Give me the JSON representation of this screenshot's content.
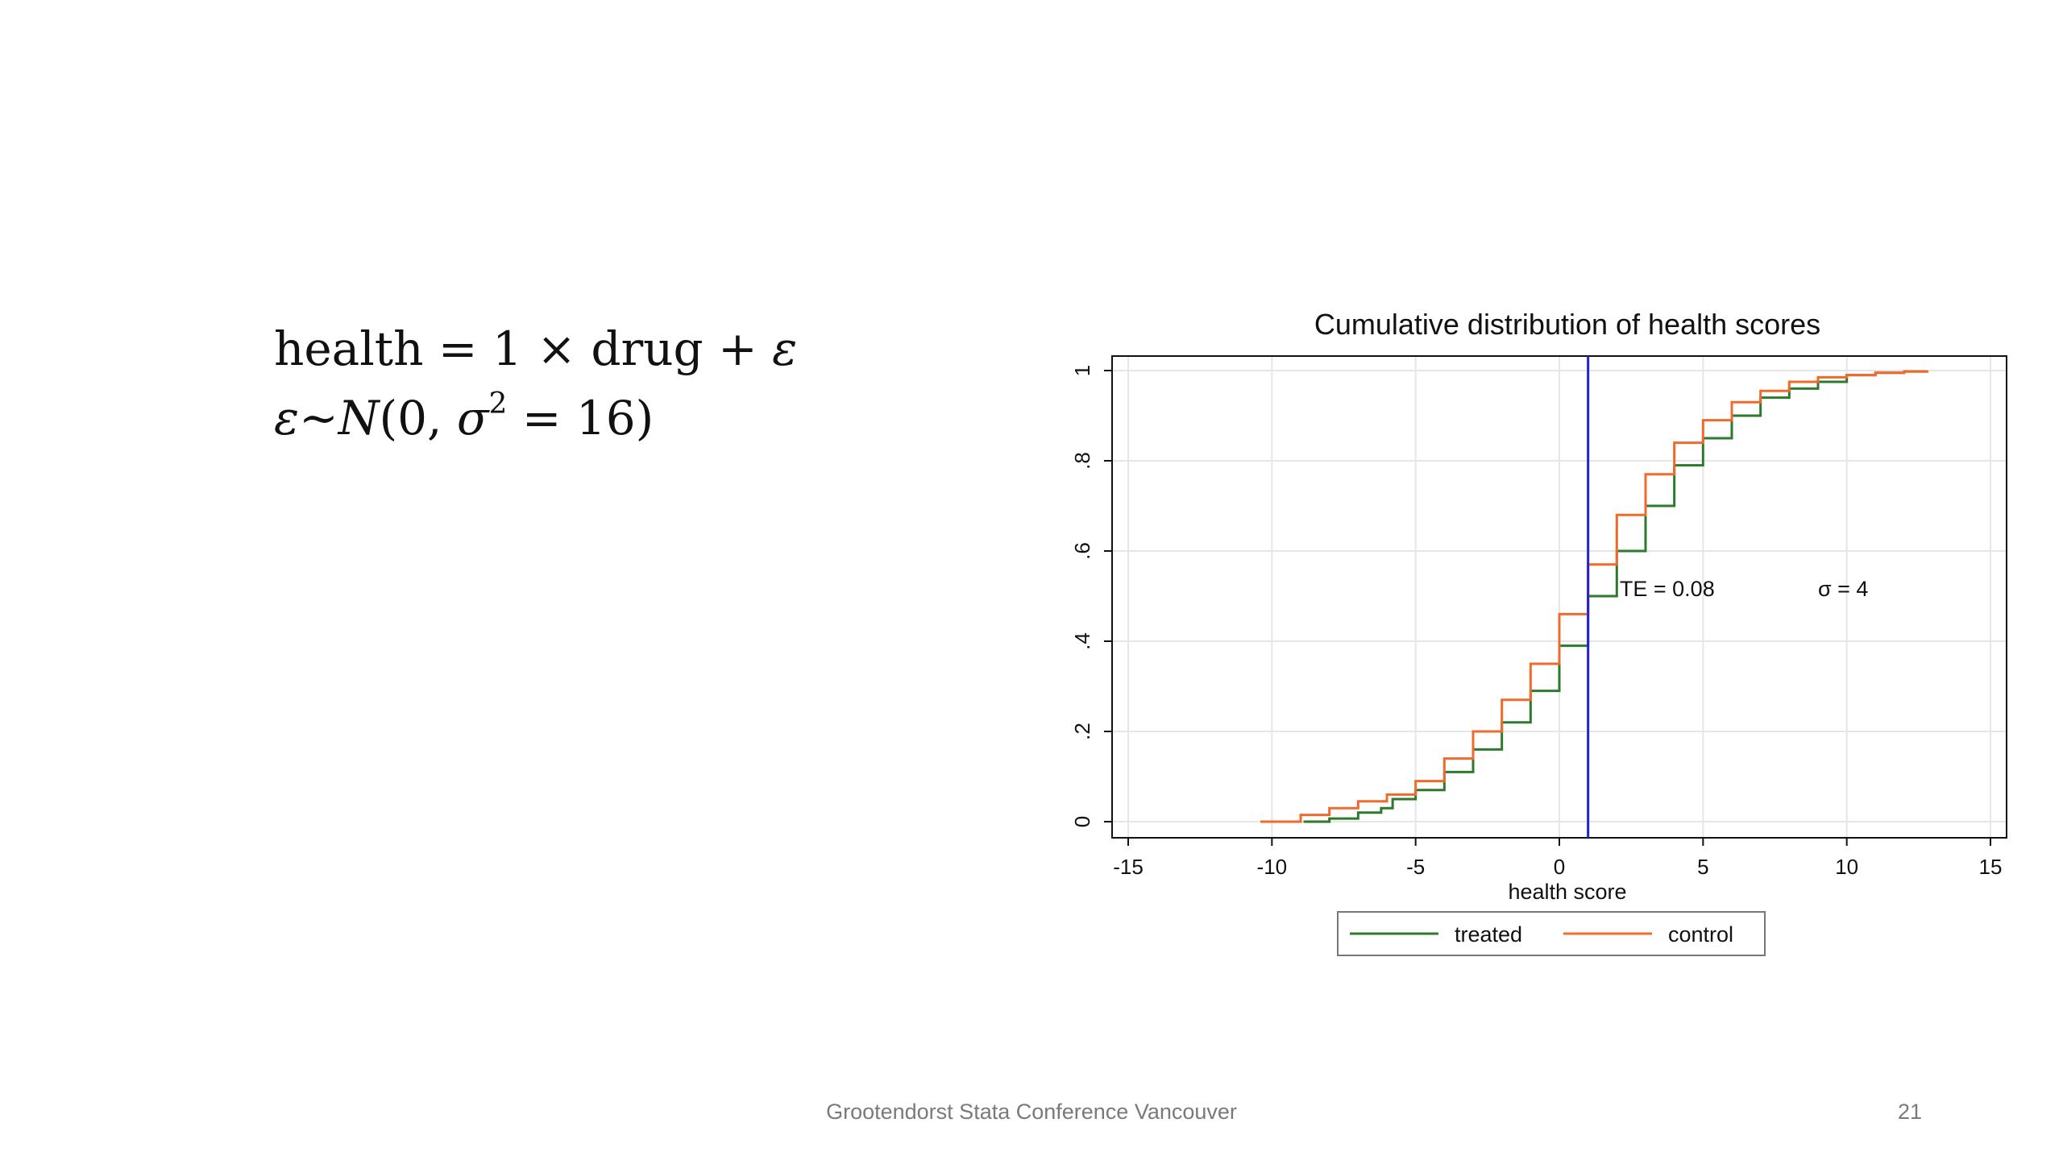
{
  "slide": {
    "equation_line1": {
      "lhs": "health",
      "op1": " = 1 × ",
      "term": "drug",
      "op2": " + ",
      "err": "ε"
    },
    "equation_line2": {
      "err": "ε",
      "tilde": "~",
      "dist": "N",
      "open": "(0, ",
      "sigma": "σ",
      "exp": "2",
      "close": " = 16)"
    },
    "footer": "Grootendorst Stata Conference Vancouver",
    "page_number": "21"
  },
  "chart_data": {
    "type": "line",
    "title": "Cumulative distribution of health scores",
    "xlabel": "health score",
    "ylabel": "",
    "xlim": [
      -15,
      15
    ],
    "ylim": [
      0,
      1
    ],
    "x_ticks": [
      -15,
      -10,
      -5,
      0,
      5,
      10,
      15
    ],
    "x_tick_labels": [
      "-15",
      "-10",
      "-5",
      "0",
      "5",
      "10",
      "15"
    ],
    "y_ticks": [
      0,
      0.2,
      0.4,
      0.6,
      0.8,
      1
    ],
    "y_tick_labels": [
      "0",
      ".2",
      ".4",
      ".6",
      ".8",
      "1"
    ],
    "grid": true,
    "legend_position": "bottom",
    "reference_line": {
      "x": 1,
      "color": "#2222cc"
    },
    "annotations": [
      {
        "text": "TE = 0.08",
        "x": 2.1,
        "y": 0.5
      },
      {
        "text": "σ = 4",
        "x": 9,
        "y": 0.5
      }
    ],
    "series": [
      {
        "name": "treated",
        "color": "#2d7a2d",
        "x": [
          -8.9,
          -8,
          -7,
          -6.2,
          -5.8,
          -5,
          -4,
          -3,
          -2,
          -1,
          0,
          1,
          2,
          3,
          4,
          5,
          6,
          7,
          8,
          9,
          10,
          11,
          12,
          12.8
        ],
        "y": [
          0.0,
          0.007,
          0.02,
          0.03,
          0.05,
          0.07,
          0.11,
          0.16,
          0.22,
          0.29,
          0.39,
          0.5,
          0.6,
          0.7,
          0.79,
          0.85,
          0.9,
          0.94,
          0.96,
          0.975,
          0.99,
          0.995,
          0.998,
          1.0
        ]
      },
      {
        "name": "control",
        "color": "#f06a2c",
        "x": [
          -10.4,
          -9,
          -8,
          -7,
          -6,
          -5,
          -4,
          -3,
          -2,
          -1,
          0,
          1,
          2,
          3,
          4,
          5,
          6,
          7,
          8,
          9,
          10,
          11,
          12,
          12.8
        ],
        "y": [
          0.0,
          0.015,
          0.03,
          0.045,
          0.06,
          0.09,
          0.14,
          0.2,
          0.27,
          0.35,
          0.46,
          0.57,
          0.68,
          0.77,
          0.84,
          0.89,
          0.93,
          0.955,
          0.975,
          0.985,
          0.99,
          0.995,
          0.998,
          1.0
        ]
      }
    ]
  }
}
